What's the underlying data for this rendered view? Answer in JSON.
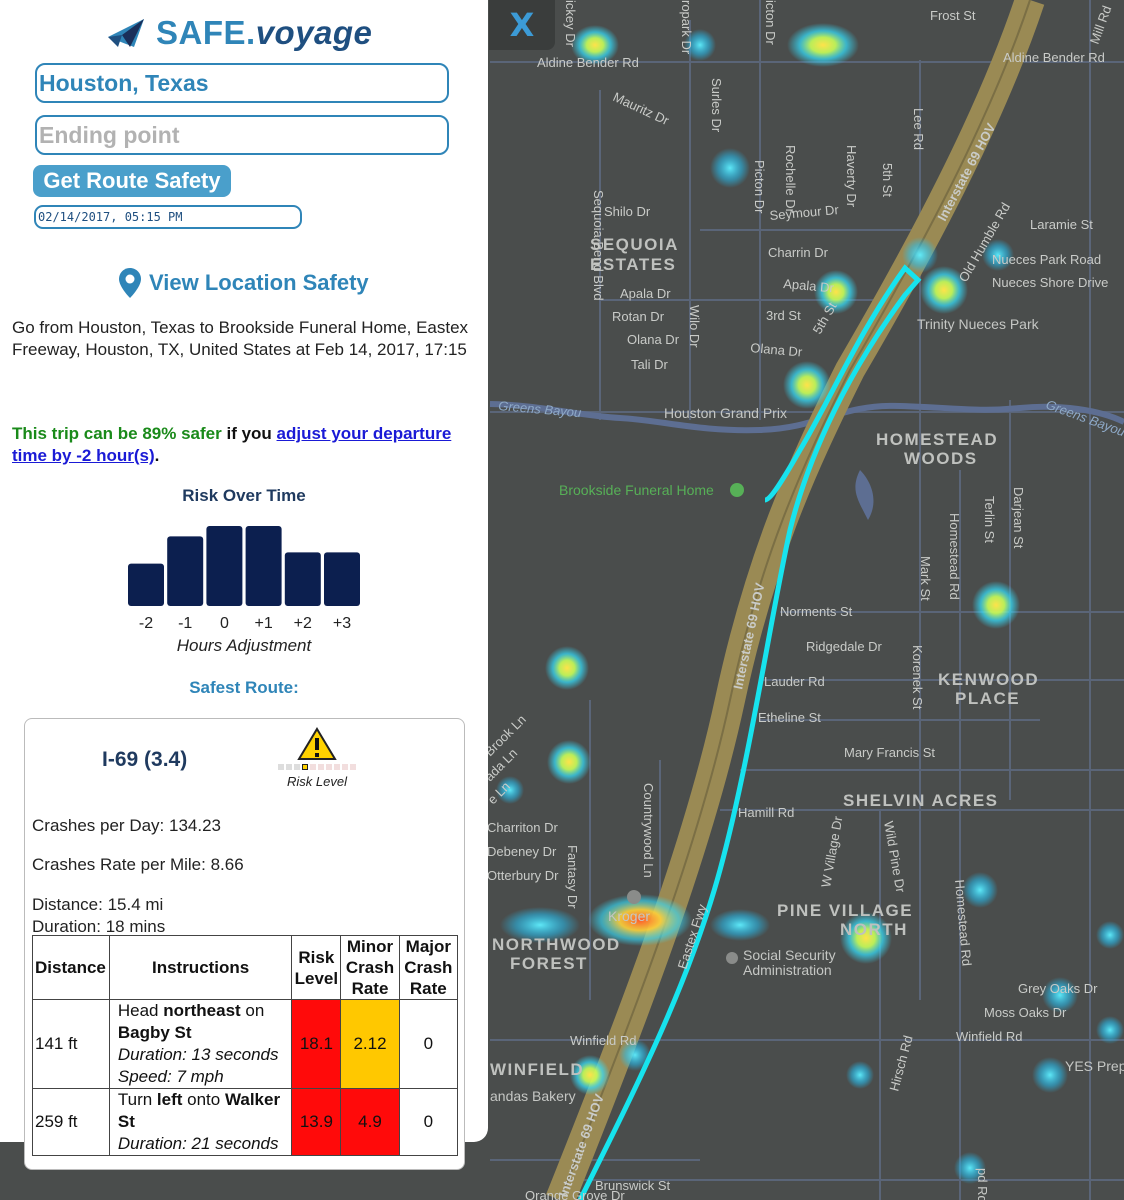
{
  "app": {
    "brand_main": "SAFE.",
    "brand_italic": "voyage"
  },
  "form": {
    "start_value": "Houston, Texas",
    "end_placeholder": "Ending point",
    "route_button": "Get Route Safety",
    "datetime_value": "02/14/2017, 05:15 PM",
    "view_location": "View Location Safety"
  },
  "trip": {
    "description": "Go from Houston, Texas to Brookside Funeral Home, Eastex Freeway, Houston, TX, United States at Feb 14, 2017, 17:15",
    "safer_prefix": "This trip can be 89% safer",
    "safer_mid": " if you ",
    "safer_link": "adjust your departure time by -2 hour(s)",
    "safer_suffix": "."
  },
  "chart_data": {
    "type": "bar",
    "title": "Risk Over Time",
    "xlabel": "Hours Adjustment",
    "categories": [
      "-2",
      "-1",
      "0",
      "+1",
      "+2",
      "+3"
    ],
    "values": [
      0.53,
      0.87,
      1.0,
      1.0,
      0.67,
      0.67
    ],
    "color": "#0c1f4f"
  },
  "safest": {
    "title": "Safest Route:",
    "route_name": "I-69 (3.4)",
    "risk_level_label": "Risk Level",
    "crashes_per_day": "Crashes per Day: 134.23",
    "crash_rate": "Crashes Rate per Mile: 8.66",
    "distance": "Distance: 15.4 mi",
    "duration": "Duration: 18 mins",
    "table": {
      "headers": [
        "Distance",
        "Instructions",
        "Risk Level",
        "Minor Crash Rate",
        "Major Crash Rate"
      ],
      "rows": [
        {
          "distance": "141 ft",
          "instr_pre": "Head ",
          "instr_bold1": "northeast",
          "instr_mid": " on ",
          "instr_bold2": "Bagby St",
          "duration": "Duration: 13 seconds",
          "speed": "Speed: 7 mph",
          "risk": "18.1",
          "minor": "2.12",
          "major": "0"
        },
        {
          "distance": "259 ft",
          "instr_pre": "Turn ",
          "instr_bold1": "left",
          "instr_mid": " onto ",
          "instr_bold2": "Walker St",
          "duration": "Duration: 21 seconds",
          "speed": "",
          "risk": "13.9",
          "minor": "4.9",
          "major": "0"
        }
      ]
    }
  },
  "map": {
    "close_label": "X",
    "colors": {
      "route": "#17e3ee",
      "highway": "#9a8a54",
      "background": "#4a4d4c"
    },
    "labels": {
      "frost_st": "Frost St",
      "aldine_bender_rd": "Aldine Bender Rd",
      "aldine_bender_rd_e": "Aldine Bender Rd",
      "mill_rd": "Mill Rd",
      "mauritz_dr": "Mauritz Dr",
      "sequoia_bend": "Sequoia Bend Blvd",
      "surles_dr": "Surles Dr",
      "picton_dr": "Picton Dr",
      "rochelle_dr": "Rochelle Dr",
      "haverty_dr": "Haverty Dr",
      "fifth_st": "5th St",
      "lee_rd": "Lee Rd",
      "shilo_dr": "Shilo Dr",
      "seymour_dr": "Seymour Dr",
      "laramie_st": "Laramie St",
      "charrin_dr": "Charrin Dr",
      "old_humble": "Old Humble Rd",
      "nueces_park": "Nueces Park Road",
      "nueces_shore": "Nueces Shore Drive",
      "apala_dr": "Apala Dr",
      "apala_dr2": "Apala Dr",
      "rotan_dr": "Rotan Dr",
      "olana_dr": "Olana Dr",
      "olana_dr2": "Olana Dr",
      "tali_dr": "Tali Dr",
      "wilo_dr": "Wilo Dr",
      "third_st": "3rd St",
      "fifth_st2": "5th St",
      "trinity_park": "Trinity Nueces Park",
      "greens_bayou": "Greens Bayou",
      "greens_bayou2": "Greens Bayou",
      "houston_gp": "Houston Grand Prix",
      "brookside": "Brookside Funeral Home",
      "terlin_st": "Terlin St",
      "darjean_st": "Darjean St",
      "homestead_rd": "Homestead Rd",
      "mark_st": "Mark St",
      "norments_st": "Norments St",
      "ridgedale_dr": "Ridgedale Dr",
      "lauder_rd": "Lauder Rd",
      "etheline_st": "Etheline St",
      "korenek_st": "Korenek St",
      "mary_francis": "Mary Francis St",
      "hamill_rd": "Hamill Rd",
      "w_village": "W Village Dr",
      "wild_pine": "Wild Pine Dr",
      "countrywood": "Countrywood Ln",
      "fantasy_dr": "Fantasy Dr",
      "charriton_dr": "Charriton Dr",
      "debeney_dr": "Debeney Dr",
      "otterbury_dr": "Otterbury Dr",
      "brook_ln": "Brook Ln",
      "ada_ln": "ada Ln",
      "e_ln": "e Ln",
      "kroger": "Kroger",
      "eastex_fwy": "Eastex Fwy",
      "social_security": "Social Security",
      "administration": "Administration",
      "homestead_rd2": "Homestead Rd",
      "grey_oaks": "Grey Oaks Dr",
      "moss_oaks": "Moss Oaks Dr",
      "winfield_rd": "Winfield Rd",
      "winfield_rd2": "Winfield Rd",
      "hirsch_rd": "Hirsch Rd",
      "yes_prep": "YES Prep",
      "andas_bakery": "andas Bakery",
      "brunswick_st": "Brunswick St",
      "orange_grove": "Orange Grove Dr",
      "i69_hov": "Interstate 69 HOV",
      "i69_hov2": "Interstate 69 HOV",
      "i69_hov3": "Interstate 69 HOV",
      "sequoia_estates_1": "SEQUOIA",
      "sequoia_estates_2": "ESTATES",
      "homestead_woods_1": "HOMESTEAD",
      "homestead_woods_2": "WOODS",
      "kenwood_place_1": "KENWOOD",
      "kenwood_place_2": "PLACE",
      "shelvin_acres": "SHELVIN ACRES",
      "pine_village_1": "PINE VILLAGE",
      "pine_village_2": "NORTH",
      "northwood_1": "NORTHWOOD",
      "northwood_2": "FOREST",
      "winfield_area": "WINFIELD",
      "pd_rd": "pd Rd",
      "ropark_dr": "ropark Dr",
      "ickey_dr": "ickey Dr",
      "icton_dr": "icton Dr"
    }
  }
}
